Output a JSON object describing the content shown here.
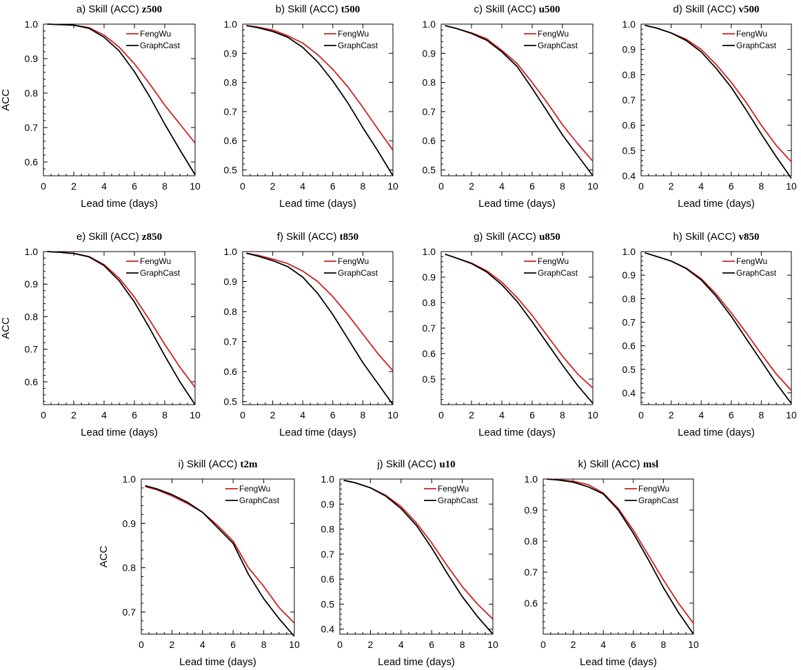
{
  "figure": {
    "axis_label_x": "Lead time (days)",
    "axis_label_y": "ACC",
    "legend": [
      "FengWu",
      "GraphCast"
    ],
    "colors": {
      "FengWu": "#cc1f1f",
      "GraphCast": "#000000"
    }
  },
  "chart_data": [
    {
      "type": "line",
      "prefix": "a) Skill (ACC) ",
      "variable": "z500",
      "xlim": [
        0,
        10
      ],
      "ylim": [
        0.56,
        1.0
      ],
      "yticks": [
        0.6,
        0.7,
        0.8,
        0.9,
        1.0
      ],
      "xticks": [
        0,
        2,
        4,
        6,
        8,
        10
      ],
      "xlabel": "Lead time (days)",
      "ylabel": "ACC",
      "legend_loc": "top-right",
      "x": [
        0.25,
        2,
        3,
        4,
        5,
        6,
        7,
        8,
        9,
        10
      ],
      "series": [
        {
          "name": "FengWu",
          "values": [
            1.0,
            0.997,
            0.99,
            0.968,
            0.933,
            0.885,
            0.827,
            0.765,
            0.71,
            0.655
          ]
        },
        {
          "name": "GraphCast",
          "values": [
            1.0,
            0.997,
            0.988,
            0.962,
            0.922,
            0.862,
            0.79,
            0.71,
            0.635,
            0.563
          ]
        }
      ]
    },
    {
      "type": "line",
      "prefix": "b) Skill (ACC) ",
      "variable": "t500",
      "xlim": [
        0,
        10
      ],
      "ylim": [
        0.48,
        1.0
      ],
      "yticks": [
        0.5,
        0.6,
        0.7,
        0.8,
        0.9,
        1.0
      ],
      "xticks": [
        0,
        2,
        4,
        6,
        8,
        10
      ],
      "xlabel": "Lead time (days)",
      "ylabel": "",
      "legend_loc": "top-right",
      "x": [
        0.25,
        1,
        2,
        3,
        4,
        5,
        6,
        7,
        8,
        9,
        10
      ],
      "series": [
        {
          "name": "FengWu",
          "values": [
            0.995,
            0.99,
            0.98,
            0.96,
            0.935,
            0.895,
            0.845,
            0.785,
            0.715,
            0.64,
            0.568
          ]
        },
        {
          "name": "GraphCast",
          "values": [
            0.995,
            0.988,
            0.975,
            0.955,
            0.92,
            0.87,
            0.805,
            0.73,
            0.645,
            0.565,
            0.48
          ]
        }
      ]
    },
    {
      "type": "line",
      "prefix": "c) Skill (ACC) ",
      "variable": "u500",
      "xlim": [
        0,
        10
      ],
      "ylim": [
        0.48,
        1.0
      ],
      "yticks": [
        0.5,
        0.6,
        0.7,
        0.8,
        0.9,
        1.0
      ],
      "xticks": [
        0,
        2,
        4,
        6,
        8,
        10
      ],
      "xlabel": "Lead time (days)",
      "ylabel": "",
      "legend_loc": "top-right",
      "x": [
        0.25,
        1,
        2,
        3,
        4,
        5,
        6,
        7,
        8,
        9,
        10
      ],
      "series": [
        {
          "name": "FengWu",
          "values": [
            0.995,
            0.985,
            0.97,
            0.95,
            0.91,
            0.865,
            0.8,
            0.73,
            0.655,
            0.59,
            0.53
          ]
        },
        {
          "name": "GraphCast",
          "values": [
            0.995,
            0.985,
            0.968,
            0.945,
            0.905,
            0.855,
            0.78,
            0.7,
            0.62,
            0.55,
            0.48
          ]
        }
      ]
    },
    {
      "type": "line",
      "prefix": "d) Skill (ACC) ",
      "variable": "v500",
      "xlim": [
        0,
        10
      ],
      "ylim": [
        0.4,
        1.0
      ],
      "yticks": [
        0.4,
        0.5,
        0.6,
        0.7,
        0.8,
        0.9,
        1.0
      ],
      "xticks": [
        0,
        2,
        4,
        6,
        8,
        10
      ],
      "xlabel": "Lead time (days)",
      "ylabel": "",
      "legend_loc": "top-right",
      "x": [
        0.25,
        1,
        2,
        3,
        4,
        5,
        6,
        7,
        8,
        9,
        10
      ],
      "series": [
        {
          "name": "FengWu",
          "values": [
            0.995,
            0.985,
            0.965,
            0.94,
            0.9,
            0.84,
            0.77,
            0.69,
            0.6,
            0.52,
            0.455
          ]
        },
        {
          "name": "GraphCast",
          "values": [
            0.995,
            0.985,
            0.965,
            0.935,
            0.89,
            0.825,
            0.75,
            0.66,
            0.565,
            0.475,
            0.39
          ]
        }
      ]
    },
    {
      "type": "line",
      "prefix": "e) Skill (ACC) ",
      "variable": "z850",
      "xlim": [
        0,
        10
      ],
      "ylim": [
        0.53,
        1.0
      ],
      "yticks": [
        0.6,
        0.7,
        0.8,
        0.9,
        1.0
      ],
      "xticks": [
        0,
        2,
        4,
        6,
        8,
        10
      ],
      "xlabel": "Lead time (days)",
      "ylabel": "ACC",
      "legend_loc": "top-right",
      "x": [
        0.25,
        1,
        2,
        3,
        4,
        5,
        6,
        7,
        8,
        9,
        10
      ],
      "series": [
        {
          "name": "FengWu",
          "values": [
            1.0,
            0.998,
            0.995,
            0.985,
            0.96,
            0.918,
            0.86,
            0.79,
            0.715,
            0.645,
            0.583
          ]
        },
        {
          "name": "GraphCast",
          "values": [
            1.0,
            0.998,
            0.994,
            0.984,
            0.957,
            0.91,
            0.845,
            0.765,
            0.68,
            0.6,
            0.53
          ]
        }
      ]
    },
    {
      "type": "line",
      "prefix": "f) Skill (ACC) ",
      "variable": "t850",
      "xlim": [
        0,
        10
      ],
      "ylim": [
        0.49,
        1.0
      ],
      "yticks": [
        0.5,
        0.6,
        0.7,
        0.8,
        0.9,
        1.0
      ],
      "xticks": [
        0,
        2,
        4,
        6,
        8,
        10
      ],
      "xlabel": "Lead time (days)",
      "ylabel": "",
      "legend_loc": "top-right",
      "x": [
        0.25,
        1,
        2,
        3,
        4,
        5,
        6,
        7,
        8,
        9,
        10
      ],
      "series": [
        {
          "name": "FengWu",
          "values": [
            0.995,
            0.988,
            0.975,
            0.96,
            0.935,
            0.9,
            0.85,
            0.79,
            0.725,
            0.66,
            0.603
          ]
        },
        {
          "name": "GraphCast",
          "values": [
            0.995,
            0.985,
            0.97,
            0.95,
            0.915,
            0.86,
            0.79,
            0.71,
            0.63,
            0.56,
            0.49
          ]
        }
      ]
    },
    {
      "type": "line",
      "prefix": "g) Skill (ACC) ",
      "variable": "u850",
      "xlim": [
        0,
        10
      ],
      "ylim": [
        0.4,
        1.0
      ],
      "yticks": [
        0.5,
        0.6,
        0.7,
        0.8,
        0.9,
        1.0
      ],
      "xticks": [
        0,
        2,
        4,
        6,
        8,
        10
      ],
      "xlabel": "Lead time (days)",
      "ylabel": "",
      "legend_loc": "top-right",
      "x": [
        0.25,
        1,
        2,
        3,
        4,
        5,
        6,
        7,
        8,
        9,
        10
      ],
      "series": [
        {
          "name": "FengWu",
          "values": [
            0.99,
            0.975,
            0.955,
            0.925,
            0.88,
            0.82,
            0.75,
            0.67,
            0.59,
            0.52,
            0.465
          ]
        },
        {
          "name": "GraphCast",
          "values": [
            0.99,
            0.975,
            0.953,
            0.92,
            0.87,
            0.805,
            0.725,
            0.64,
            0.555,
            0.475,
            0.405
          ]
        }
      ]
    },
    {
      "type": "line",
      "prefix": "h) Skill (ACC) ",
      "variable": "v850",
      "xlim": [
        0,
        10
      ],
      "ylim": [
        0.35,
        1.0
      ],
      "yticks": [
        0.4,
        0.5,
        0.6,
        0.7,
        0.8,
        0.9,
        1.0
      ],
      "xticks": [
        0,
        2,
        4,
        6,
        8,
        10
      ],
      "xlabel": "Lead time (days)",
      "ylabel": "",
      "legend_loc": "top-right",
      "x": [
        0.25,
        1,
        2,
        3,
        4,
        5,
        6,
        7,
        8,
        9,
        10
      ],
      "series": [
        {
          "name": "FengWu",
          "values": [
            0.995,
            0.98,
            0.96,
            0.93,
            0.885,
            0.82,
            0.74,
            0.655,
            0.565,
            0.48,
            0.41
          ]
        },
        {
          "name": "GraphCast",
          "values": [
            0.995,
            0.98,
            0.96,
            0.928,
            0.88,
            0.81,
            0.725,
            0.63,
            0.535,
            0.44,
            0.355
          ]
        }
      ]
    },
    {
      "type": "line",
      "prefix": "i) Skill (ACC) ",
      "variable": "t2m",
      "xlim": [
        0,
        10
      ],
      "ylim": [
        0.65,
        1.0
      ],
      "yticks": [
        0.7,
        0.8,
        0.9,
        1.0
      ],
      "xticks": [
        0,
        2,
        4,
        6,
        8,
        10
      ],
      "xlabel": "Lead time (days)",
      "ylabel": "ACC",
      "legend_loc": "top-right",
      "x": [
        0.25,
        1,
        2,
        3,
        4,
        5,
        6,
        7,
        8,
        9,
        10
      ],
      "series": [
        {
          "name": "FengWu",
          "values": [
            0.983,
            0.976,
            0.962,
            0.945,
            0.925,
            0.895,
            0.86,
            0.8,
            0.758,
            0.71,
            0.675
          ]
        },
        {
          "name": "GraphCast",
          "values": [
            0.985,
            0.978,
            0.965,
            0.948,
            0.925,
            0.89,
            0.855,
            0.785,
            0.73,
            0.685,
            0.645
          ]
        }
      ]
    },
    {
      "type": "line",
      "prefix": "j) Skill (ACC) ",
      "variable": "u10",
      "xlim": [
        0,
        10
      ],
      "ylim": [
        0.38,
        1.0
      ],
      "yticks": [
        0.4,
        0.5,
        0.6,
        0.7,
        0.8,
        0.9,
        1.0
      ],
      "xticks": [
        0,
        2,
        4,
        6,
        8,
        10
      ],
      "xlabel": "Lead time (days)",
      "ylabel": "",
      "legend_loc": "top-right",
      "x": [
        0.25,
        1,
        2,
        3,
        4,
        5,
        6,
        7,
        8,
        9,
        10
      ],
      "series": [
        {
          "name": "FengWu",
          "values": [
            0.995,
            0.985,
            0.965,
            0.935,
            0.89,
            0.825,
            0.745,
            0.655,
            0.57,
            0.5,
            0.44
          ]
        },
        {
          "name": "GraphCast",
          "values": [
            0.995,
            0.985,
            0.965,
            0.932,
            0.882,
            0.815,
            0.725,
            0.625,
            0.53,
            0.45,
            0.38
          ]
        }
      ]
    },
    {
      "type": "line",
      "prefix": "k) Skill (ACC) ",
      "variable": "msl",
      "xlim": [
        0,
        10
      ],
      "ylim": [
        0.5,
        1.0
      ],
      "yticks": [
        0.6,
        0.7,
        0.8,
        0.9,
        1.0
      ],
      "xticks": [
        0,
        2,
        4,
        6,
        8,
        10
      ],
      "xlabel": "Lead time (days)",
      "ylabel": "",
      "legend_loc": "top-right",
      "x": [
        0.25,
        1,
        2,
        3,
        4,
        5,
        6,
        7,
        8,
        9,
        10
      ],
      "series": [
        {
          "name": "FengWu",
          "values": [
            1.0,
            0.998,
            0.993,
            0.982,
            0.955,
            0.905,
            0.835,
            0.755,
            0.675,
            0.6,
            0.535
          ]
        },
        {
          "name": "GraphCast",
          "values": [
            1.0,
            0.997,
            0.99,
            0.975,
            0.952,
            0.9,
            0.825,
            0.74,
            0.65,
            0.57,
            0.5
          ]
        }
      ]
    }
  ]
}
